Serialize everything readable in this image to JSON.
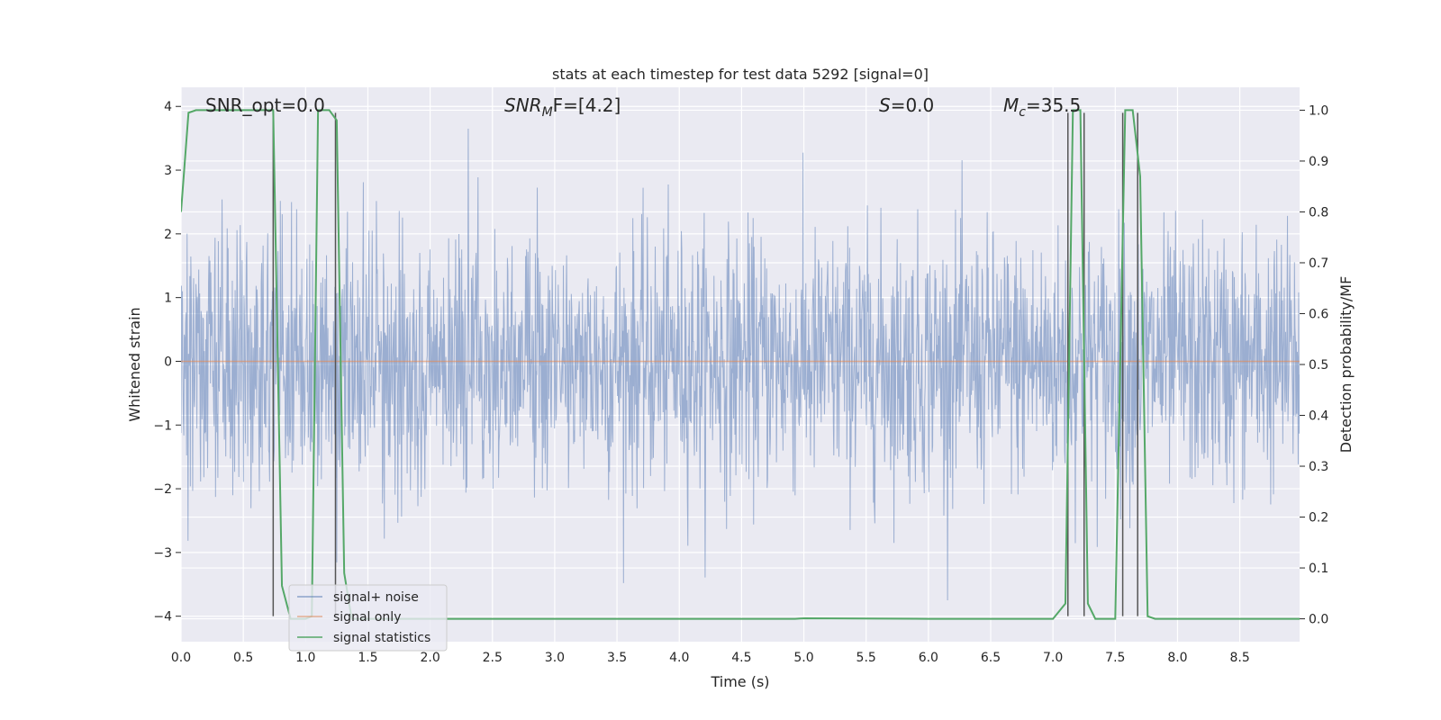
{
  "chart_data": {
    "type": "line",
    "title": "stats at each timestep for test data 5292 [signal=0]",
    "xlabel": "Time (s)",
    "ylabel": "Whitened strain",
    "ylabel_right": "Detection probability/MF",
    "xlim": [
      0.0,
      8.98
    ],
    "ylim": [
      -4.4,
      4.3
    ],
    "ylim_right": [
      -0.045,
      1.045
    ],
    "x_ticks": [
      0.0,
      0.5,
      1.0,
      1.5,
      2.0,
      2.5,
      3.0,
      3.5,
      4.0,
      4.5,
      5.0,
      5.5,
      6.0,
      6.5,
      7.0,
      7.5,
      8.0,
      8.5
    ],
    "x_tick_labels": [
      "0.0",
      "0.5",
      "1.0",
      "1.5",
      "2.0",
      "2.5",
      "3.0",
      "3.5",
      "4.0",
      "4.5",
      "5.0",
      "5.5",
      "6.0",
      "6.5",
      "7.0",
      "7.5",
      "8.0",
      "8.5"
    ],
    "y_ticks": [
      -4,
      -3,
      -2,
      -1,
      0,
      1,
      2,
      3,
      4
    ],
    "y_tick_labels": [
      "−4",
      "−3",
      "−2",
      "−1",
      "0",
      "1",
      "2",
      "3",
      "4"
    ],
    "y_right_ticks": [
      0.0,
      0.1,
      0.2,
      0.3,
      0.4,
      0.5,
      0.6,
      0.7,
      0.8,
      0.9,
      1.0
    ],
    "y_right_tick_labels": [
      "0.0",
      "0.1",
      "0.2",
      "0.3",
      "0.4",
      "0.5",
      "0.6",
      "0.7",
      "0.8",
      "0.9",
      "1.0"
    ],
    "grid": true,
    "legend_position": "lower-left",
    "annotations": {
      "snr_opt_text": "SNR_opt=0.0",
      "snr_mf_sym": "SNR",
      "snr_mf_sub": "M",
      "snr_mf_rest": "F=[4.2]",
      "s_sym": "S",
      "s_rest": "=0.0",
      "mc_sym": "M",
      "mc_sub": "c",
      "mc_rest": "=35.5"
    },
    "series": [
      {
        "name": "signal+ noise",
        "color": "#4c72b0",
        "description": "whitened noise strain, roughly unit-variance, spanning about -3.7 to 3.6",
        "noise_std": 1.0
      },
      {
        "name": "signal only",
        "color": "#dd8452",
        "values_constant": 0.0
      },
      {
        "name": "signal statistics",
        "color": "#55a868",
        "axis": "right",
        "x": [
          0.0,
          0.06,
          0.12,
          0.2,
          0.3,
          0.4,
          0.5,
          0.6,
          0.7,
          0.74,
          0.81,
          0.88,
          0.94,
          1.0,
          1.05,
          1.1,
          1.13,
          1.19,
          1.25,
          1.31,
          1.37,
          1.43,
          1.5,
          2.0,
          3.0,
          4.0,
          4.93,
          5.0,
          6.0,
          7.0,
          7.1,
          7.16,
          7.22,
          7.28,
          7.34,
          7.4,
          7.5,
          7.58,
          7.64,
          7.7,
          7.76,
          7.82,
          7.88,
          8.0,
          8.5,
          8.98
        ],
        "y": [
          0.8,
          0.995,
          1.0,
          1.0,
          1.0,
          1.0,
          1.0,
          1.0,
          1.0,
          1.0,
          0.065,
          0.0,
          0.0,
          0.0,
          0.005,
          1.0,
          1.0,
          1.0,
          0.98,
          0.09,
          0.0,
          0.0,
          0.0,
          0.0,
          0.0,
          0.0,
          0.0,
          0.001,
          0.0,
          0.0,
          0.03,
          1.0,
          1.0,
          0.03,
          0.0,
          0.0,
          0.0,
          1.0,
          1.0,
          0.87,
          0.005,
          0.0,
          0.0,
          0.0,
          0.0,
          0.0
        ]
      }
    ],
    "event_markers": {
      "color": "#555555",
      "x": [
        0.74,
        1.24,
        7.12,
        7.25,
        7.56,
        7.68
      ],
      "y_from": -4.0,
      "y_to": 3.9
    }
  }
}
